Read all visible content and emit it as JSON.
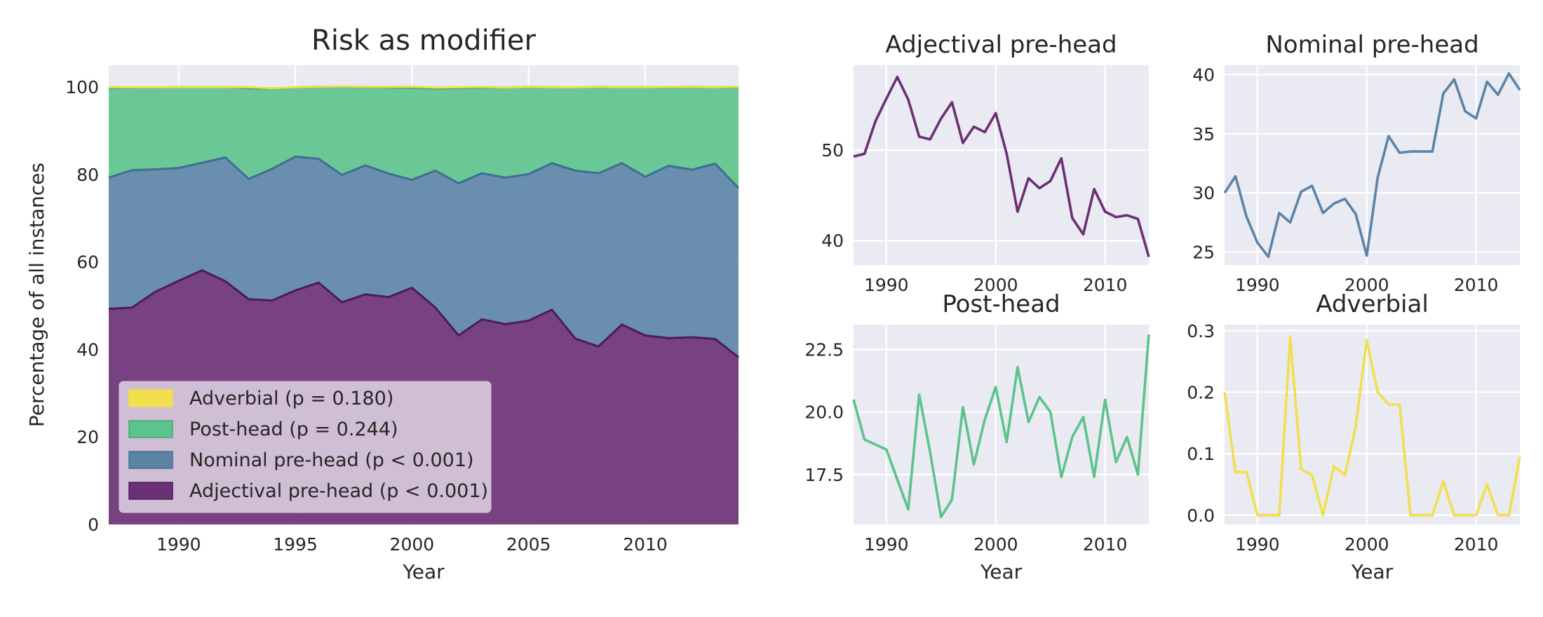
{
  "colors": {
    "background": "#eaeaf2",
    "grid": "#ffffff",
    "adverbial": "#f1df4e",
    "post_head": "#5cc38c",
    "nominal": "#5b84a6",
    "adjectival": "#6b2f74",
    "adjectival_line": "#4a1d55",
    "nominal_line": "#3f6f8f",
    "post_line": "#45a775"
  },
  "chart_data": [
    {
      "id": "main",
      "type": "area",
      "title": "Risk as modifier",
      "xlabel": "Year",
      "ylabel": "Percentage of all instances",
      "xlim": [
        1987,
        2014
      ],
      "ylim": [
        0,
        105
      ],
      "xticks": [
        1990,
        1995,
        2000,
        2005,
        2010
      ],
      "yticks": [
        0,
        20,
        40,
        60,
        80,
        100
      ],
      "grid": true,
      "legend_position": "lower-left",
      "legend": [
        {
          "label": "Adverbial (p = 0.180)",
          "series": "Adverbial"
        },
        {
          "label": "Post-head (p = 0.244)",
          "series": "Post-head"
        },
        {
          "label": "Nominal pre-head (p < 0.001)",
          "series": "Nominal pre-head"
        },
        {
          "label": "Adjectival pre-head (p < 0.001)",
          "series": "Adjectival pre-head"
        }
      ],
      "stacked": true,
      "x": [
        1987,
        1988,
        1989,
        1990,
        1991,
        1992,
        1993,
        1994,
        1995,
        1996,
        1997,
        1998,
        1999,
        2000,
        2001,
        2002,
        2003,
        2004,
        2005,
        2006,
        2007,
        2008,
        2009,
        2010,
        2011,
        2012,
        2013,
        2014
      ],
      "series_order": [
        "Adjectival pre-head",
        "Nominal pre-head",
        "Post-head",
        "Adverbial"
      ]
    },
    {
      "id": "adjectival",
      "type": "line",
      "title": "Adjectival pre-head",
      "series_name": "Adjectival pre-head",
      "xlim": [
        1987,
        2014
      ],
      "ylim": [
        37.3,
        59.4
      ],
      "xticks": [
        1990,
        2000,
        2010
      ],
      "yticks": [
        40,
        50
      ],
      "ytick_labels": [
        "40",
        "50"
      ],
      "grid": true
    },
    {
      "id": "nominal",
      "type": "line",
      "title": "Nominal pre-head",
      "series_name": "Nominal pre-head",
      "xlim": [
        1987,
        2014
      ],
      "ylim": [
        23.9,
        40.8
      ],
      "xticks": [
        1990,
        2000,
        2010
      ],
      "yticks": [
        25,
        30,
        35,
        40
      ],
      "ytick_labels": [
        "25",
        "30",
        "35",
        "40"
      ],
      "grid": true
    },
    {
      "id": "post",
      "type": "line",
      "title": "Post-head",
      "series_name": "Post-head",
      "xlabel": "Year",
      "xlim": [
        1987,
        2014
      ],
      "ylim": [
        15.5,
        23.5
      ],
      "xticks": [
        1990,
        2000,
        2010
      ],
      "yticks": [
        17.5,
        20.0,
        22.5
      ],
      "ytick_labels": [
        "17.5",
        "20.0",
        "22.5"
      ],
      "grid": true
    },
    {
      "id": "adverbial",
      "type": "line",
      "title": "Adverbial",
      "series_name": "Adverbial",
      "xlabel": "Year",
      "xlim": [
        1987,
        2014
      ],
      "ylim": [
        -0.015,
        0.31
      ],
      "xticks": [
        1990,
        2000,
        2010
      ],
      "yticks": [
        0.0,
        0.1,
        0.2,
        0.3
      ],
      "ytick_labels": [
        "0.0",
        "0.1",
        "0.2",
        "0.3"
      ],
      "grid": true
    }
  ],
  "series": [
    {
      "name": "Adjectival pre-head",
      "values": [
        49.3,
        49.6,
        53.2,
        55.7,
        58.1,
        55.6,
        51.5,
        51.2,
        53.5,
        55.3,
        50.8,
        52.6,
        52.0,
        54.1,
        49.6,
        43.2,
        46.9,
        45.8,
        46.6,
        49.1,
        42.5,
        40.7,
        45.7,
        43.2,
        42.6,
        42.8,
        42.4,
        38.2
      ]
    },
    {
      "name": "Nominal pre-head",
      "values": [
        30.0,
        31.4,
        28.0,
        25.8,
        24.6,
        28.3,
        27.5,
        30.1,
        30.6,
        28.3,
        29.1,
        29.5,
        28.2,
        24.7,
        31.3,
        34.8,
        33.4,
        33.5,
        33.5,
        33.5,
        38.4,
        39.6,
        36.9,
        36.3,
        39.4,
        38.3,
        40.1,
        38.7
      ]
    },
    {
      "name": "Post-head",
      "values": [
        20.5,
        18.9,
        18.7,
        18.5,
        17.3,
        16.1,
        20.7,
        18.4,
        15.8,
        16.5,
        20.2,
        17.9,
        19.7,
        21.0,
        18.8,
        21.8,
        19.6,
        20.6,
        20.0,
        17.4,
        19.0,
        19.8,
        17.4,
        20.5,
        18.0,
        19.0,
        17.5,
        23.1
      ]
    },
    {
      "name": "Adverbial",
      "values": [
        0.2,
        0.07,
        0.07,
        0.0,
        0.0,
        0.0,
        0.29,
        0.075,
        0.065,
        0.0,
        0.08,
        0.065,
        0.145,
        0.285,
        0.2,
        0.18,
        0.18,
        0.0,
        0.0,
        0.0,
        0.055,
        0.0,
        0.0,
        0.0,
        0.05,
        0.0,
        0.0,
        0.095
      ]
    }
  ]
}
